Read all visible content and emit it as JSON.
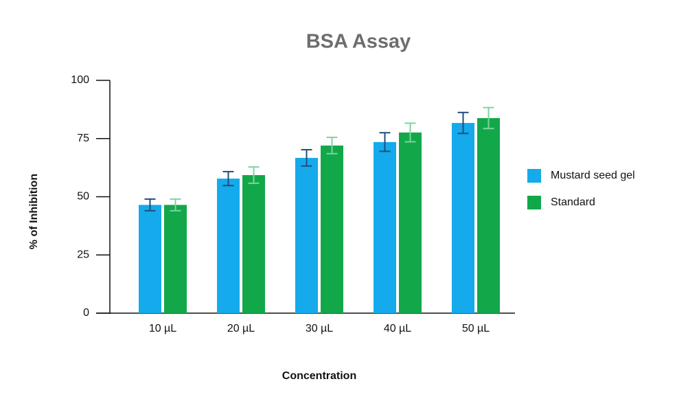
{
  "chart_data": {
    "type": "bar",
    "title": "BSA Assay",
    "x_label": "Concentration",
    "y_label": "% of Inhibition",
    "categories": [
      "10 µL",
      "20 µL",
      "30 µL",
      "40 µL",
      "50 µL"
    ],
    "series": [
      {
        "name": "Mustard seed gel",
        "color": "#14aaeb",
        "error_color": "#1f4e79",
        "values": [
          46.5,
          57.8,
          66.7,
          73.5,
          81.7
        ],
        "errors": [
          2.5,
          3,
          3.5,
          4,
          4.5
        ]
      },
      {
        "name": "Standard",
        "color": "#12a84a",
        "error_color": "#7fd3a0",
        "values": [
          46.5,
          59.3,
          72,
          77.6,
          83.8
        ],
        "errors": [
          2.5,
          3.5,
          3.5,
          4,
          4.5
        ]
      }
    ],
    "ylim": [
      0,
      100
    ],
    "yticks": [
      0,
      25,
      50,
      75,
      100
    ],
    "grid": false,
    "legend": "right"
  }
}
